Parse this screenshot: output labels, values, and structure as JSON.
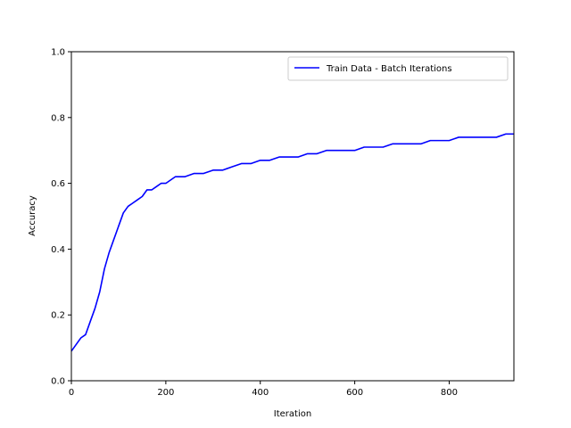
{
  "chart_data": {
    "type": "line",
    "xlabel": "Iteration",
    "ylabel": "Accuracy",
    "xlim": [
      0,
      937
    ],
    "ylim": [
      0.0,
      1.0
    ],
    "xticks": [
      0,
      200,
      400,
      600,
      800
    ],
    "xtick_labels": [
      "0",
      "200",
      "400",
      "600",
      "800"
    ],
    "yticks": [
      0.0,
      0.2,
      0.4,
      0.6,
      0.8,
      1.0
    ],
    "ytick_labels": [
      "0.0",
      "0.2",
      "0.4",
      "0.6",
      "0.8",
      "1.0"
    ],
    "grid": false,
    "legend_position": "upper-right",
    "series": [
      {
        "name": "Train Data - Batch Iterations",
        "color": "#0000ff",
        "x": [
          0,
          10,
          20,
          30,
          40,
          50,
          60,
          70,
          80,
          90,
          100,
          110,
          120,
          130,
          140,
          150,
          160,
          170,
          180,
          190,
          200,
          220,
          240,
          260,
          280,
          300,
          320,
          340,
          360,
          380,
          400,
          420,
          440,
          460,
          480,
          500,
          520,
          540,
          560,
          580,
          600,
          620,
          640,
          660,
          680,
          700,
          720,
          740,
          760,
          780,
          800,
          820,
          840,
          860,
          880,
          900,
          920,
          937
        ],
        "values": [
          0.09,
          0.11,
          0.13,
          0.14,
          0.18,
          0.22,
          0.27,
          0.34,
          0.39,
          0.43,
          0.47,
          0.51,
          0.53,
          0.54,
          0.55,
          0.56,
          0.58,
          0.58,
          0.59,
          0.6,
          0.6,
          0.62,
          0.62,
          0.63,
          0.63,
          0.64,
          0.64,
          0.65,
          0.66,
          0.66,
          0.67,
          0.67,
          0.68,
          0.68,
          0.68,
          0.69,
          0.69,
          0.7,
          0.7,
          0.7,
          0.7,
          0.71,
          0.71,
          0.71,
          0.72,
          0.72,
          0.72,
          0.72,
          0.73,
          0.73,
          0.73,
          0.74,
          0.74,
          0.74,
          0.74,
          0.74,
          0.75,
          0.75
        ]
      }
    ]
  }
}
